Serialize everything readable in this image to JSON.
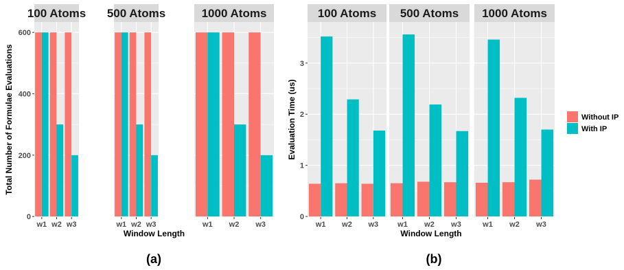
{
  "colors": {
    "without_ip": "#F8766D",
    "with_ip": "#00BFC4",
    "panel_bg": "#EBEBEB",
    "strip_bg": "#D9D9D9",
    "grid": "#FFFFFF"
  },
  "legend": {
    "items": [
      {
        "label": "Without IP",
        "color_key": "without_ip"
      },
      {
        "label": "With IP",
        "color_key": "with_ip"
      }
    ]
  },
  "chart_data": [
    {
      "type": "bar",
      "caption": "(a)",
      "xlabel": "Window Length",
      "ylabel": "Total Number of Formulae Evaluations",
      "ylim": [
        0,
        625
      ],
      "yticks": [
        0,
        200,
        400,
        600
      ],
      "grid": true,
      "categories": [
        "w1",
        "w2",
        "w3"
      ],
      "facets": [
        {
          "title": "100 Atoms",
          "series": [
            {
              "name": "Without IP",
              "values": [
                600,
                600,
                600
              ]
            },
            {
              "name": "With IP",
              "values": [
                600,
                300,
                200
              ]
            }
          ]
        },
        {
          "title": "500 Atoms",
          "series": [
            {
              "name": "Without IP",
              "values": [
                600,
                600,
                600
              ]
            },
            {
              "name": "With IP",
              "values": [
                600,
                300,
                200
              ]
            }
          ]
        },
        {
          "title": "1000 Atoms",
          "series": [
            {
              "name": "Without IP",
              "values": [
                600,
                600,
                600
              ]
            },
            {
              "name": "With IP",
              "values": [
                600,
                300,
                200
              ]
            }
          ]
        }
      ]
    },
    {
      "type": "bar",
      "caption": "(b)",
      "xlabel": "Window Length",
      "ylabel": "Evaluation Time (us)",
      "ylim": [
        0,
        3.75
      ],
      "yticks": [
        0,
        1,
        2,
        3
      ],
      "grid": true,
      "categories": [
        "w1",
        "w2",
        "w3"
      ],
      "legend_position": "right",
      "facets": [
        {
          "title": "100 Atoms",
          "series": [
            {
              "name": "Without IP",
              "values": [
                0.64,
                0.65,
                0.64
              ]
            },
            {
              "name": "With IP",
              "values": [
                3.52,
                2.29,
                1.68
              ]
            }
          ]
        },
        {
          "title": "500 Atoms",
          "series": [
            {
              "name": "Without IP",
              "values": [
                0.65,
                0.68,
                0.67
              ]
            },
            {
              "name": "With IP",
              "values": [
                3.56,
                2.19,
                1.67
              ]
            }
          ]
        },
        {
          "title": "1000 Atoms",
          "series": [
            {
              "name": "Without IP",
              "values": [
                0.66,
                0.67,
                0.72
              ]
            },
            {
              "name": "With IP",
              "values": [
                3.46,
                2.32,
                1.7
              ]
            }
          ]
        }
      ]
    }
  ]
}
